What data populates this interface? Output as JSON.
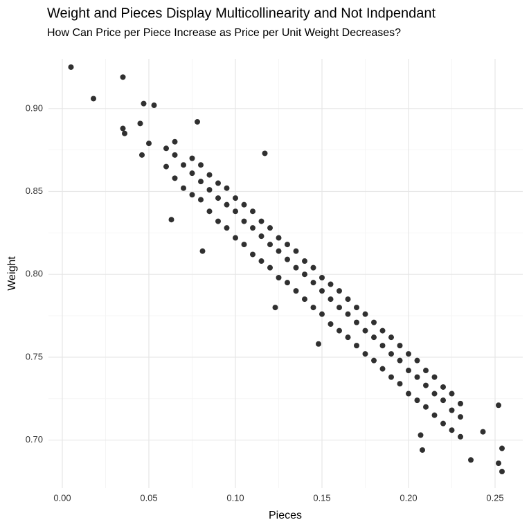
{
  "chart_data": {
    "type": "scatter",
    "title": "Weight and Pieces Display Multicollinearity and Not Indpendant",
    "subtitle": "How Can Price per Piece Increase as Price per Unit Weight Decreases?",
    "x_label": "Pieces",
    "y_label": "Weight",
    "xlim": [
      -0.008,
      0.266
    ],
    "ylim": [
      0.671,
      0.93
    ],
    "xticks": [
      {
        "value": 0,
        "label": "0.00"
      },
      0.05,
      {
        "value": 0.1,
        "label": "0.10"
      },
      0.15,
      {
        "value": 0.2,
        "label": "0.20"
      },
      0.25
    ],
    "yticks": [
      {
        "value": 0.7,
        "label": "0.70"
      },
      0.75,
      {
        "value": 0.8,
        "label": "0.80"
      },
      0.85,
      {
        "value": 0.9,
        "label": "0.90"
      }
    ],
    "grid": true,
    "minor_grid": true,
    "series": [
      {
        "color": "#1a1a1a",
        "x": [
          0.005,
          0.018,
          0.035,
          0.035,
          0.036,
          0.045,
          0.047,
          0.053,
          0.046,
          0.05,
          0.063,
          0.081,
          0.117,
          0.123,
          0.148,
          0.252,
          0.254,
          0.254,
          0.252,
          0.236,
          0.208,
          0.207,
          0.078,
          0.243,
          0.06,
          0.06,
          0.065,
          0.065,
          0.065,
          0.07,
          0.07,
          0.075,
          0.075,
          0.075,
          0.08,
          0.08,
          0.08,
          0.085,
          0.085,
          0.085,
          0.09,
          0.09,
          0.09,
          0.095,
          0.095,
          0.095,
          0.1,
          0.1,
          0.1,
          0.105,
          0.105,
          0.105,
          0.11,
          0.11,
          0.11,
          0.115,
          0.115,
          0.115,
          0.12,
          0.12,
          0.12,
          0.125,
          0.125,
          0.125,
          0.13,
          0.13,
          0.13,
          0.135,
          0.135,
          0.135,
          0.14,
          0.14,
          0.14,
          0.145,
          0.145,
          0.145,
          0.15,
          0.15,
          0.15,
          0.155,
          0.155,
          0.155,
          0.16,
          0.16,
          0.16,
          0.165,
          0.165,
          0.165,
          0.17,
          0.17,
          0.17,
          0.175,
          0.175,
          0.175,
          0.18,
          0.18,
          0.18,
          0.185,
          0.185,
          0.185,
          0.19,
          0.19,
          0.19,
          0.195,
          0.195,
          0.195,
          0.2,
          0.2,
          0.2,
          0.205,
          0.205,
          0.205,
          0.21,
          0.21,
          0.21,
          0.215,
          0.215,
          0.215,
          0.22,
          0.22,
          0.22,
          0.225,
          0.225,
          0.225,
          0.23,
          0.23,
          0.23
        ],
        "values": [
          0.925,
          0.906,
          0.919,
          0.888,
          0.885,
          0.891,
          0.903,
          0.902,
          0.872,
          0.879,
          0.833,
          0.814,
          0.873,
          0.78,
          0.758,
          0.721,
          0.695,
          0.681,
          0.686,
          0.688,
          0.694,
          0.703,
          0.892,
          0.705,
          0.876,
          0.865,
          0.872,
          0.858,
          0.88,
          0.866,
          0.852,
          0.861,
          0.87,
          0.848,
          0.856,
          0.845,
          0.866,
          0.851,
          0.838,
          0.86,
          0.846,
          0.832,
          0.855,
          0.842,
          0.828,
          0.852,
          0.838,
          0.822,
          0.846,
          0.832,
          0.818,
          0.842,
          0.828,
          0.812,
          0.838,
          0.823,
          0.808,
          0.832,
          0.818,
          0.804,
          0.828,
          0.814,
          0.798,
          0.822,
          0.809,
          0.795,
          0.818,
          0.804,
          0.79,
          0.814,
          0.8,
          0.785,
          0.808,
          0.795,
          0.78,
          0.804,
          0.79,
          0.776,
          0.798,
          0.785,
          0.77,
          0.794,
          0.78,
          0.766,
          0.79,
          0.776,
          0.762,
          0.785,
          0.771,
          0.757,
          0.78,
          0.766,
          0.752,
          0.776,
          0.762,
          0.748,
          0.771,
          0.757,
          0.743,
          0.766,
          0.752,
          0.738,
          0.762,
          0.748,
          0.734,
          0.757,
          0.742,
          0.728,
          0.752,
          0.738,
          0.724,
          0.748,
          0.733,
          0.72,
          0.742,
          0.728,
          0.715,
          0.738,
          0.724,
          0.71,
          0.732,
          0.718,
          0.706,
          0.728,
          0.714,
          0.702,
          0.722
        ]
      }
    ]
  }
}
